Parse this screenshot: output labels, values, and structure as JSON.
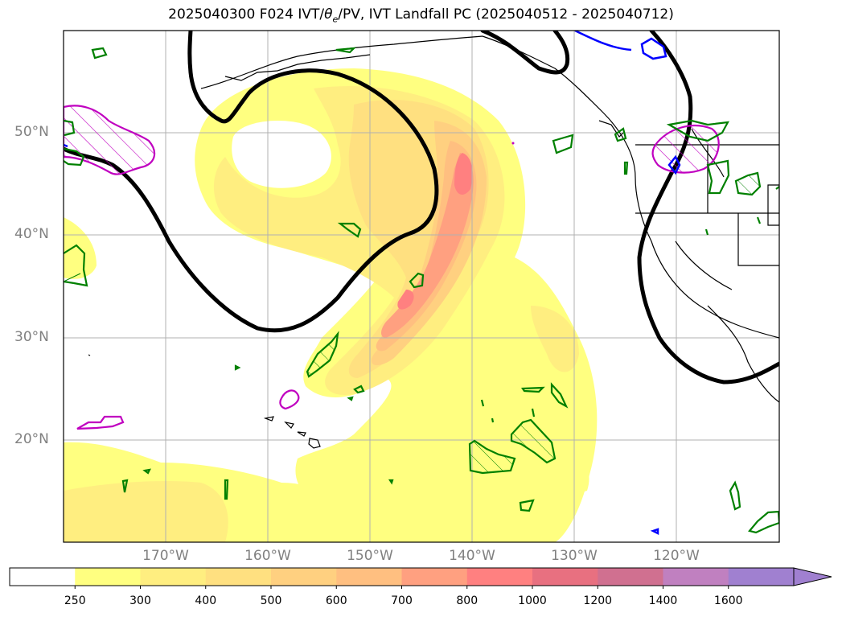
{
  "title": "2025040300 F024 IVT/θe/PV, IVT Landfall PC (2025040512 - 2025040712)",
  "title_parts": {
    "prefix": "2025040300 F024 IVT/",
    "theta": "θ",
    "sub": "e",
    "suffix": "/PV, IVT Landfall PC (2025040512 - 2025040712)"
  },
  "lat_labels": [
    "50°N",
    "40°N",
    "30°N",
    "20°N"
  ],
  "lon_labels": [
    "170°W",
    "160°W",
    "150°W",
    "140°W",
    "130°W",
    "120°W"
  ],
  "colorbar": {
    "ticks": [
      "250",
      "300",
      "400",
      "500",
      "600",
      "700",
      "800",
      "1000",
      "1200",
      "1400",
      "1600"
    ],
    "colors": [
      "#ffffff",
      "#ffff80",
      "#ffee80",
      "#ffe080",
      "#ffd080",
      "#ffbf80",
      "#ffa080",
      "#ff8080",
      "#e87080",
      "#d07090",
      "#c080c0",
      "#a080d0"
    ]
  },
  "colors": {
    "ivt_fill": [
      "#ffff80",
      "#ffee80",
      "#ffe080",
      "#ffd080",
      "#ffbf80",
      "#ffa080",
      "#ff8080"
    ],
    "theta_e_contour": "#000000",
    "pv_contour": "#008000",
    "landfall_pc_contour": "#c000c0",
    "blue_contour": "#0000ff",
    "coastline": "#000000",
    "grid": "#b0b0b0"
  }
}
